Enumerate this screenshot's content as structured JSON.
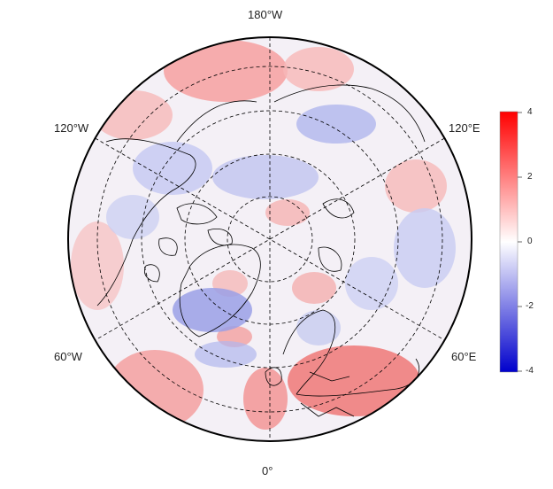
{
  "map": {
    "projection": "north-polar-stereographic",
    "longitude_labels": {
      "top": "180°W",
      "upper_left": "120°W",
      "upper_right": "120°E",
      "lower_left": "60°W",
      "lower_right": "60°E",
      "bottom": "0°"
    },
    "colorbar": {
      "min": -4,
      "max": 4,
      "ticks": [
        "4",
        "2",
        "0",
        "-2",
        "-4"
      ],
      "colors": {
        "max": "#ff0000",
        "mid": "#ffffff",
        "min": "#0000cc"
      }
    },
    "grid": {
      "parallels": "dashed",
      "meridians": "dashed"
    }
  }
}
